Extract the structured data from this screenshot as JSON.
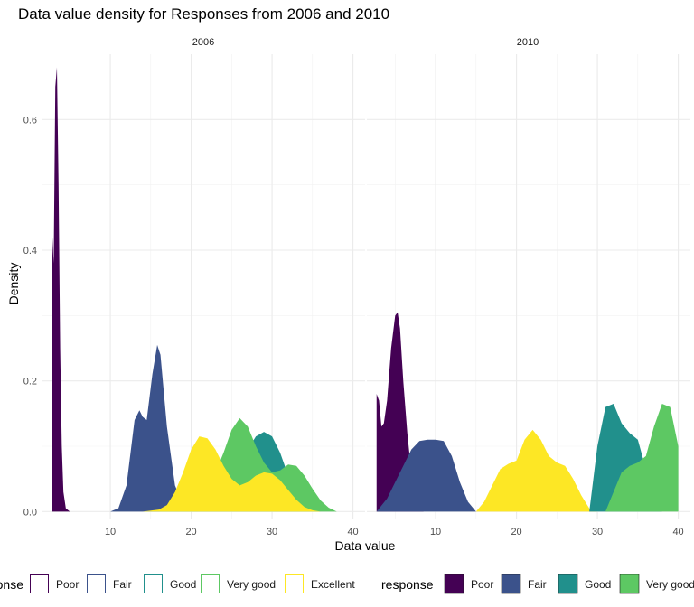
{
  "chart_data": {
    "type": "area",
    "title": "Data value density for Responses from 2006 and 2010",
    "xlabel": "Data value",
    "ylabel": "Density",
    "x_ticks": [
      10,
      20,
      30,
      40
    ],
    "y_ticks": [
      0.0,
      0.2,
      0.4,
      0.6
    ],
    "y_tick_labels": [
      "0.0",
      "0.2",
      "0.4",
      "0.6"
    ],
    "xlim": [
      1.5,
      41.5
    ],
    "ylim": [
      -0.012,
      0.7
    ],
    "grid": true,
    "legend_placement": "bottom",
    "colors": {
      "Poor": "#440154",
      "Fair": "#3B528B",
      "Good": "#21908C",
      "Very good": "#5DC863",
      "Excellent": "#FDE725"
    },
    "facets": [
      {
        "label": "2006",
        "legend_style": "outline",
        "series": [
          {
            "name": "Poor",
            "x": [
              2.8,
              3.0,
              3.2,
              3.4,
              3.6,
              3.8,
              4.0,
              4.2,
              4.5,
              5.0
            ],
            "y": [
              0.43,
              0.38,
              0.65,
              0.68,
              0.5,
              0.25,
              0.1,
              0.03,
              0.005,
              0.0
            ]
          },
          {
            "name": "Fair",
            "x": [
              10,
              11,
              12,
              12.6,
              13,
              13.6,
              14,
              14.5,
              15.2,
              15.8,
              16.2,
              17,
              18,
              19,
              20,
              21,
              22
            ],
            "y": [
              0.0,
              0.005,
              0.04,
              0.1,
              0.14,
              0.155,
              0.145,
              0.14,
              0.21,
              0.255,
              0.24,
              0.13,
              0.04,
              0.01,
              0.002,
              0.0,
              0.0
            ]
          },
          {
            "name": "Good",
            "x": [
              14,
              17,
              19,
              21,
              23,
              24,
              25,
              26,
              27,
              28,
              29,
              30,
              31,
              32,
              33,
              34,
              35,
              36
            ],
            "y": [
              0.0,
              0.002,
              0.008,
              0.02,
              0.04,
              0.06,
              0.075,
              0.08,
              0.095,
              0.115,
              0.122,
              0.115,
              0.09,
              0.055,
              0.025,
              0.01,
              0.003,
              0.0
            ]
          },
          {
            "name": "Very good",
            "x": [
              16,
              19,
              21,
              22.5,
              24,
              25,
              26,
              27,
              28,
              29,
              30,
              31,
              32,
              33,
              34,
              35,
              36,
              37,
              38
            ],
            "y": [
              0.0,
              0.005,
              0.02,
              0.045,
              0.09,
              0.125,
              0.143,
              0.13,
              0.1,
              0.075,
              0.06,
              0.063,
              0.072,
              0.07,
              0.055,
              0.035,
              0.017,
              0.006,
              0.0
            ]
          },
          {
            "name": "Excellent",
            "x": [
              14,
              16,
              17,
              18,
              19,
              20,
              21,
              22,
              23,
              24,
              25,
              26,
              27,
              28,
              29,
              30,
              31,
              32,
              33,
              34,
              35,
              36
            ],
            "y": [
              0.0,
              0.003,
              0.01,
              0.03,
              0.06,
              0.095,
              0.115,
              0.112,
              0.095,
              0.07,
              0.05,
              0.04,
              0.045,
              0.055,
              0.06,
              0.058,
              0.048,
              0.033,
              0.018,
              0.007,
              0.002,
              0.0
            ]
          }
        ]
      },
      {
        "label": "2010",
        "legend_style": "filled",
        "series": [
          {
            "name": "Poor",
            "x": [
              2.7,
              3.0,
              3.3,
              3.6,
              4.0,
              4.5,
              5.0,
              5.3,
              5.6,
              6.0,
              6.5,
              7.0,
              7.5,
              8.0,
              8.5
            ],
            "y": [
              0.18,
              0.17,
              0.13,
              0.135,
              0.17,
              0.25,
              0.3,
              0.305,
              0.28,
              0.2,
              0.12,
              0.06,
              0.025,
              0.008,
              0.002
            ]
          },
          {
            "name": "Fair",
            "x": [
              2.7,
              4,
              5,
              6,
              7,
              8,
              9,
              10,
              11,
              12,
              13,
              14,
              15
            ],
            "y": [
              0.0,
              0.02,
              0.045,
              0.07,
              0.095,
              0.108,
              0.11,
              0.11,
              0.108,
              0.085,
              0.045,
              0.015,
              0.0
            ]
          },
          {
            "name": "Excellent",
            "x": [
              15,
              16,
              17,
              18,
              19,
              20,
              21,
              22,
              23,
              24,
              25,
              26,
              27,
              28,
              29,
              30
            ],
            "y": [
              0.0,
              0.015,
              0.04,
              0.065,
              0.073,
              0.078,
              0.11,
              0.125,
              0.11,
              0.085,
              0.075,
              0.07,
              0.05,
              0.025,
              0.005,
              0.0
            ]
          },
          {
            "name": "Good",
            "x": [
              29,
              30,
              31,
              32,
              33,
              34,
              35,
              36,
              37,
              38
            ],
            "y": [
              0.0,
              0.1,
              0.16,
              0.165,
              0.135,
              0.12,
              0.11,
              0.065,
              0.03,
              0.0
            ]
          },
          {
            "name": "Very good",
            "x": [
              31,
              32,
              33,
              34,
              35,
              36,
              37,
              38,
              39,
              40
            ],
            "y": [
              0.0,
              0.03,
              0.06,
              0.07,
              0.075,
              0.085,
              0.13,
              0.165,
              0.16,
              0.1
            ]
          }
        ]
      }
    ],
    "legend": {
      "title": "response",
      "items": [
        "Poor",
        "Fair",
        "Good",
        "Very good",
        "Excellent"
      ]
    }
  }
}
